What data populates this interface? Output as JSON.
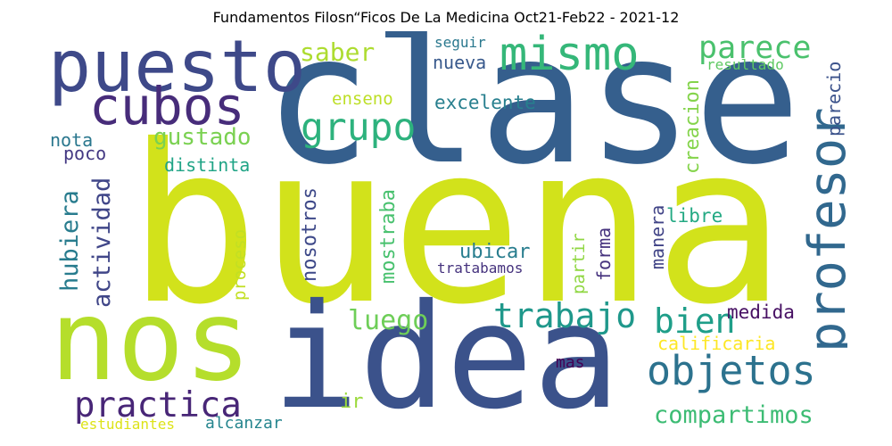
{
  "title": "Fundamentos Filosn“Ficos De La Medicina Oct21-Feb22 - 2021-12",
  "words": [
    {
      "text": "buena",
      "color": "#d2e21b"
    },
    {
      "text": "clase",
      "color": "#355f8d"
    },
    {
      "text": "idea",
      "color": "#3b528b"
    },
    {
      "text": "nos",
      "color": "#b5de2b"
    },
    {
      "text": "puesto",
      "color": "#3e4989"
    },
    {
      "text": "cubos",
      "color": "#472c7a"
    },
    {
      "text": "mismo",
      "color": "#35b779"
    },
    {
      "text": "parece",
      "color": "#4ac16d"
    },
    {
      "text": "profesor",
      "color": "#31688e"
    },
    {
      "text": "grupo",
      "color": "#2db27d"
    },
    {
      "text": "trabajo",
      "color": "#1f988b"
    },
    {
      "text": "bien",
      "color": "#1f9e89"
    },
    {
      "text": "objetos",
      "color": "#2c728e"
    },
    {
      "text": "practica",
      "color": "#482677"
    },
    {
      "text": "compartimos",
      "color": "#3dbc74"
    },
    {
      "text": "luego",
      "color": "#6ece58"
    },
    {
      "text": "gustado",
      "color": "#7ad151"
    },
    {
      "text": "saber",
      "color": "#addc30"
    },
    {
      "text": "nueva",
      "color": "#38598c"
    },
    {
      "text": "excelente",
      "color": "#277f8e"
    },
    {
      "text": "enseno",
      "color": "#bddf26"
    },
    {
      "text": "seguir",
      "color": "#2a788e"
    },
    {
      "text": "resultado",
      "color": "#5ec962"
    },
    {
      "text": "parecio",
      "color": "#3b528b"
    },
    {
      "text": "creacion",
      "color": "#84d44b"
    },
    {
      "text": "nota",
      "color": "#2a778e"
    },
    {
      "text": "poco",
      "color": "#443983"
    },
    {
      "text": "distinta",
      "color": "#20a486"
    },
    {
      "text": "hubiera",
      "color": "#287c8e"
    },
    {
      "text": "actividad",
      "color": "#404688"
    },
    {
      "text": "nosotros",
      "color": "#3e4989"
    },
    {
      "text": "proceso",
      "color": "#c2df23"
    },
    {
      "text": "mostraba",
      "color": "#48c16e"
    },
    {
      "text": "ubicar",
      "color": "#287d8e"
    },
    {
      "text": "tratabamos",
      "color": "#46337e"
    },
    {
      "text": "partir",
      "color": "#90d743"
    },
    {
      "text": "forma",
      "color": "#46337e"
    },
    {
      "text": "manera",
      "color": "#414487"
    },
    {
      "text": "libre",
      "color": "#23a983"
    },
    {
      "text": "medida",
      "color": "#471063"
    },
    {
      "text": "calificaria",
      "color": "#fde725"
    },
    {
      "text": "mas",
      "color": "#440154"
    },
    {
      "text": "ir",
      "color": "#9bd93c"
    },
    {
      "text": "estudiantes",
      "color": "#dde318"
    },
    {
      "text": "alcanzar",
      "color": "#25858e"
    }
  ]
}
